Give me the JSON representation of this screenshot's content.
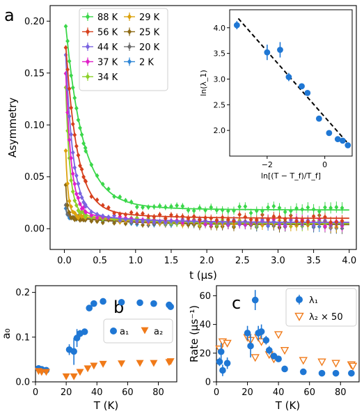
{
  "chart_data": [
    {
      "id": "a",
      "type": "scatter",
      "panel_label": "a",
      "xlabel": "t (μs)",
      "ylabel": "Asymmetry",
      "xlim": [
        -0.2,
        4.1
      ],
      "ylim": [
        -0.02,
        0.215
      ],
      "xticks": [
        "0.0",
        "0.5",
        "1.0",
        "1.5",
        "2.0",
        "2.5",
        "3.0",
        "3.5",
        "4.0"
      ],
      "yticks": [
        "0.00",
        "0.05",
        "0.10",
        "0.15",
        "0.20"
      ],
      "legend_placement": "top-left",
      "series": [
        {
          "name": "88 K",
          "color": "#3bd74a",
          "a1": 0.183,
          "a2": 0.028,
          "lambda": 4.2,
          "tail": 0.018
        },
        {
          "name": "56 K",
          "color": "#d6401d",
          "a1": 0.178,
          "a2": 0.027,
          "lambda": 6.2,
          "tail": 0.01
        },
        {
          "name": "44 K",
          "color": "#7a64e0",
          "a1": 0.183,
          "a2": 0.028,
          "lambda": 9.5,
          "tail": 0.006
        },
        {
          "name": "37 K",
          "color": "#e01fc8",
          "a1": 0.175,
          "a2": 0.03,
          "lambda": 13,
          "tail": 0.006
        },
        {
          "name": "34 K",
          "color": "#8bd12a",
          "a1": 0.17,
          "a2": 0.03,
          "lambda": 17,
          "tail": 0.005
        },
        {
          "name": "29 K",
          "color": "#dca20e",
          "a1": 0.11,
          "a2": 0.025,
          "lambda": 30,
          "tail": 0.005
        },
        {
          "name": "25 K",
          "color": "#8d6a14",
          "a1": 0.075,
          "a2": 0.022,
          "lambda": 45,
          "tail": 0.004
        },
        {
          "name": "20 K",
          "color": "#6d6d6d",
          "a1": 0.035,
          "a2": 0.022,
          "lambda": 60,
          "tail": 0.004
        },
        {
          "name": "2 K",
          "color": "#2f86d6",
          "a1": 0.03,
          "a2": 0.024,
          "lambda": 70,
          "tail": 0.004
        }
      ]
    },
    {
      "id": "a-inset",
      "type": "scatter",
      "xlabel": "ln[(T − T_f)/T_f]",
      "ylabel": "ln(λ_1)",
      "xlim": [
        -3.3,
        0.95
      ],
      "ylim": [
        1.5,
        4.35
      ],
      "xticks": [
        "−2",
        "0"
      ],
      "yticks": [
        "2.0",
        "2.5",
        "3.0",
        "3.5",
        "4.0"
      ],
      "color": "#1f77d4",
      "points": [
        {
          "x": -3.05,
          "y": 4.05,
          "err": 0.08
        },
        {
          "x": -2.0,
          "y": 3.52,
          "err": 0.15
        },
        {
          "x": -1.55,
          "y": 3.57,
          "err": 0.15
        },
        {
          "x": -1.25,
          "y": 3.04,
          "err": 0.08
        },
        {
          "x": -0.8,
          "y": 2.86,
          "err": 0.05
        },
        {
          "x": -0.6,
          "y": 2.73,
          "err": 0.05
        },
        {
          "x": -0.2,
          "y": 2.23,
          "err": 0.04
        },
        {
          "x": 0.15,
          "y": 1.95,
          "err": 0.04
        },
        {
          "x": 0.45,
          "y": 1.83,
          "err": 0.03
        },
        {
          "x": 0.62,
          "y": 1.8,
          "err": 0.03
        },
        {
          "x": 0.8,
          "y": 1.71,
          "err": 0.03
        }
      ],
      "fit_line": {
        "x": [
          -3.0,
          0.8
        ],
        "y": [
          4.18,
          1.75
        ]
      }
    },
    {
      "id": "b",
      "type": "scatter",
      "panel_label": "b",
      "xlabel": "T (K)",
      "ylabel": "a₀",
      "xlim": [
        0,
        92
      ],
      "ylim": [
        0,
        0.215
      ],
      "xticks": [
        "0",
        "20",
        "40",
        "60",
        "80"
      ],
      "yticks": [
        "0.0",
        "0.1",
        "0.2"
      ],
      "legend_placement": "right",
      "series": [
        {
          "name": "a₁",
          "color": "#1f77d4",
          "marker": "circle",
          "points": [
            [
              2,
              0.03
            ],
            [
              4,
              0.028
            ],
            [
              7,
              0.026
            ],
            [
              22,
              0.072
            ],
            [
              25,
              0.068
            ],
            [
              27,
              0.098
            ],
            [
              29,
              0.108
            ],
            [
              32,
              0.112
            ],
            [
              35,
              0.165
            ],
            [
              38,
              0.175
            ],
            [
              44,
              0.18
            ],
            [
              56,
              0.178
            ],
            [
              68,
              0.177
            ],
            [
              77,
              0.175
            ],
            [
              87,
              0.172
            ],
            [
              88,
              0.168
            ]
          ],
          "errors": [
            0.005,
            0.005,
            0.005,
            0.012,
            0.03,
            0.02,
            0.008,
            0.006,
            0.006,
            0.005,
            0.005,
            0.005,
            0.005,
            0.005,
            0.005,
            0.005
          ]
        },
        {
          "name": "a₂",
          "color": "#f07a19",
          "marker": "triangle-down",
          "points": [
            [
              2,
              0.024
            ],
            [
              4,
              0.022
            ],
            [
              7,
              0.022
            ],
            [
              20,
              0.012
            ],
            [
              25,
              0.012
            ],
            [
              29,
              0.022
            ],
            [
              34,
              0.03
            ],
            [
              38,
              0.036
            ],
            [
              44,
              0.04
            ],
            [
              56,
              0.041
            ],
            [
              68,
              0.042
            ],
            [
              77,
              0.042
            ],
            [
              87,
              0.044
            ],
            [
              88,
              0.046
            ]
          ]
        }
      ]
    },
    {
      "id": "c",
      "type": "scatter",
      "panel_label": "c",
      "xlabel": "T (K)",
      "ylabel": "Rate (μs⁻¹)",
      "xlim": [
        0,
        92
      ],
      "ylim": [
        0,
        67
      ],
      "xticks": [
        "0",
        "20",
        "40",
        "60",
        "80"
      ],
      "yticks": [
        "0",
        "20",
        "40",
        "60"
      ],
      "legend_placement": "top-right",
      "series": [
        {
          "name": "λ₁",
          "color": "#1f77d4",
          "marker": "circle",
          "points": [
            [
              2,
              14
            ],
            [
              3,
              21
            ],
            [
              4,
              8
            ],
            [
              7,
              13
            ],
            [
              20,
              34
            ],
            [
              22,
              25
            ],
            [
              25,
              57
            ],
            [
              27,
              34
            ],
            [
              29,
              35
            ],
            [
              32,
              29
            ],
            [
              34,
              22
            ],
            [
              37,
              18
            ],
            [
              40,
              16
            ],
            [
              44,
              9
            ],
            [
              56,
              7
            ],
            [
              68,
              6
            ],
            [
              77,
              6
            ],
            [
              87,
              6
            ]
          ],
          "errors": [
            3,
            6,
            4,
            4,
            5,
            8,
            7,
            5,
            5,
            3,
            3,
            2,
            2,
            1,
            1,
            1,
            1,
            1
          ]
        },
        {
          "name": "λ₂ × 50",
          "color": "#f07a19",
          "marker": "triangle-down-open",
          "points": [
            [
              2,
              23
            ],
            [
              4,
              28
            ],
            [
              7,
              27
            ],
            [
              20,
              31
            ],
            [
              22,
              29
            ],
            [
              25,
              17
            ],
            [
              27,
              31
            ],
            [
              29,
              28
            ],
            [
              34,
              19
            ],
            [
              37,
              16
            ],
            [
              40,
              33
            ],
            [
              44,
              22
            ],
            [
              56,
              15
            ],
            [
              68,
              14
            ],
            [
              77,
              13
            ],
            [
              87,
              12
            ],
            [
              88,
              11
            ]
          ]
        }
      ]
    }
  ]
}
